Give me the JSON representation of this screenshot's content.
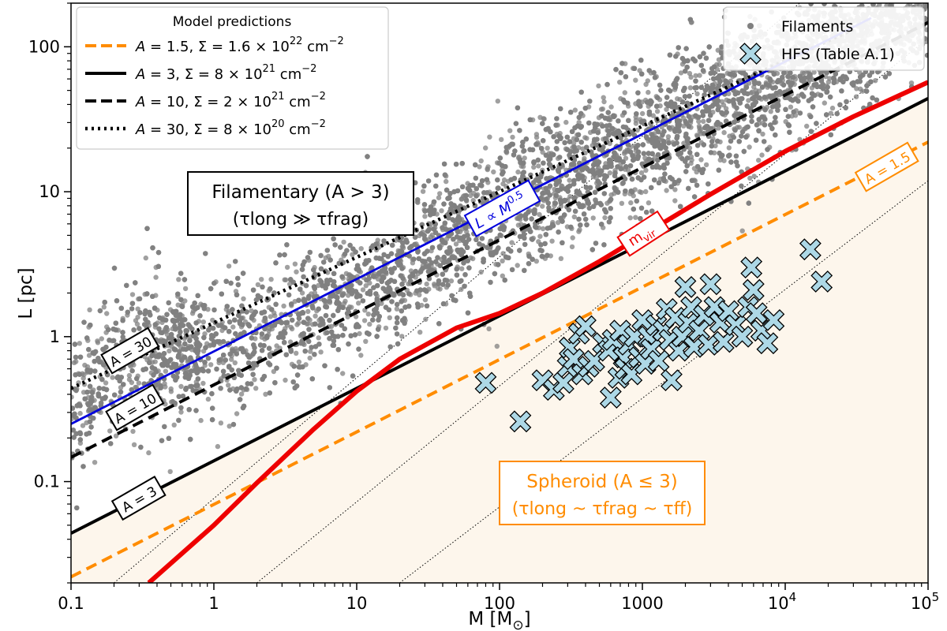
{
  "chart_data": {
    "type": "scatter",
    "title": "",
    "xlabel": "M [M",
    "xlabel_sub": "⊙",
    "xlabel_close": "]",
    "ylabel": "L [pc]",
    "xscale": "log",
    "yscale": "log",
    "xlim": [
      0.1,
      100000
    ],
    "ylim": [
      0.02,
      200
    ],
    "x_ticks": [
      {
        "value": 0.1,
        "label": "0.1"
      },
      {
        "value": 1,
        "label": "1"
      },
      {
        "value": 10,
        "label": "10"
      },
      {
        "value": 100,
        "label": "100"
      },
      {
        "value": 1000,
        "label": "1000"
      },
      {
        "value": 10000,
        "label": "10",
        "exp": "4"
      },
      {
        "value": 100000,
        "label": "10",
        "exp": "5"
      }
    ],
    "y_ticks": [
      {
        "value": 0.1,
        "label": "0.1"
      },
      {
        "value": 1,
        "label": "1"
      },
      {
        "value": 10,
        "label": "10"
      },
      {
        "value": 100,
        "label": "100"
      }
    ],
    "model_lines": [
      {
        "name": "A=1.5",
        "color": "#ff8c00",
        "style": "dashed",
        "x": [
          0.1,
          100000
        ],
        "y": [
          0.022,
          22
        ]
      },
      {
        "name": "A=3",
        "color": "#000000",
        "style": "solid",
        "x": [
          0.1,
          100000
        ],
        "y": [
          0.044,
          44
        ]
      },
      {
        "name": "A=10",
        "color": "#000000",
        "style": "dashed",
        "x": [
          0.1,
          100000
        ],
        "y": [
          0.147,
          147
        ]
      },
      {
        "name": "A=30",
        "color": "#000000",
        "style": "dotted",
        "x": [
          0.1,
          30000
        ],
        "y": [
          0.44,
          132
        ]
      }
    ],
    "relation_lines": [
      {
        "name": "L ∝ M^0.5",
        "color": "#0000dd",
        "x": [
          0.1,
          40000
        ],
        "y": [
          0.25,
          158
        ]
      },
      {
        "name": "m_vir",
        "color": "#ee0000",
        "x": [
          0.35,
          0.6,
          1,
          2,
          5,
          10,
          20,
          50,
          100,
          200,
          500,
          1000,
          3000,
          10000,
          30000,
          100000
        ],
        "y": [
          0.02,
          0.032,
          0.05,
          0.098,
          0.23,
          0.42,
          0.7,
          1.15,
          1.45,
          2.0,
          3.3,
          5.0,
          9.6,
          19.0,
          33.0,
          57.0
        ]
      }
    ],
    "thin_lines": [
      {
        "x": [
          0.2,
          200000
        ],
        "y": [
          0.02,
          2000
        ]
      },
      {
        "x": [
          2,
          200000
        ],
        "y": [
          0.02,
          200
        ]
      },
      {
        "x": [
          20,
          200000
        ],
        "y": [
          0.02,
          20
        ]
      }
    ],
    "filaments_cloud": {
      "label": "Filaments",
      "count": 11000,
      "color": "#808080"
    },
    "hfs_points": [
      [
        80,
        0.48
      ],
      [
        140,
        0.26
      ],
      [
        200,
        0.5
      ],
      [
        240,
        0.43
      ],
      [
        280,
        0.48
      ],
      [
        300,
        0.62
      ],
      [
        310,
        0.84
      ],
      [
        330,
        0.7
      ],
      [
        360,
        1.05
      ],
      [
        380,
        0.55
      ],
      [
        400,
        1.18
      ],
      [
        420,
        0.62
      ],
      [
        460,
        0.68
      ],
      [
        530,
        0.9
      ],
      [
        580,
        0.8
      ],
      [
        600,
        0.38
      ],
      [
        620,
        0.95
      ],
      [
        680,
        0.52
      ],
      [
        700,
        1.1
      ],
      [
        740,
        0.72
      ],
      [
        760,
        0.6
      ],
      [
        800,
        0.88
      ],
      [
        840,
        0.55
      ],
      [
        880,
        1.0
      ],
      [
        950,
        0.72
      ],
      [
        1000,
        1.3
      ],
      [
        1050,
        0.65
      ],
      [
        1100,
        1.0
      ],
      [
        1150,
        0.82
      ],
      [
        1250,
        1.2
      ],
      [
        1300,
        0.68
      ],
      [
        1400,
        1.1
      ],
      [
        1480,
        1.55
      ],
      [
        1550,
        0.95
      ],
      [
        1600,
        0.5
      ],
      [
        1700,
        1.35
      ],
      [
        1800,
        0.8
      ],
      [
        1900,
        1.0
      ],
      [
        2000,
        2.2
      ],
      [
        2100,
        1.25
      ],
      [
        2200,
        1.6
      ],
      [
        2300,
        0.85
      ],
      [
        2500,
        1.1
      ],
      [
        2700,
        1.4
      ],
      [
        2900,
        0.88
      ],
      [
        3000,
        2.3
      ],
      [
        3200,
        1.6
      ],
      [
        3500,
        1.25
      ],
      [
        3700,
        0.92
      ],
      [
        4000,
        1.5
      ],
      [
        4500,
        1.2
      ],
      [
        5000,
        1.0
      ],
      [
        5500,
        1.6
      ],
      [
        5800,
        3.0
      ],
      [
        6000,
        2.1
      ],
      [
        6300,
        1.45
      ],
      [
        6800,
        1.1
      ],
      [
        7500,
        0.9
      ],
      [
        8300,
        1.3
      ],
      [
        15000,
        4.0
      ],
      [
        18000,
        2.4
      ]
    ],
    "legend_models": {
      "title": "Model predictions",
      "items": [
        {
          "style": "dashed",
          "color": "#ff8c00",
          "a": "1.5",
          "sigma": "1.6 × 10",
          "exp": "22",
          "unit": " cm",
          "unit_exp": "−2"
        },
        {
          "style": "solid",
          "color": "#000000",
          "a": "3",
          "sigma": "8 × 10",
          "exp": "21",
          "unit": " cm",
          "unit_exp": "−2"
        },
        {
          "style": "dashed",
          "color": "#000000",
          "a": "10",
          "sigma": "2 × 10",
          "exp": "21",
          "unit": " cm",
          "unit_exp": "−2"
        },
        {
          "style": "dotted",
          "color": "#000000",
          "a": "30",
          "sigma": "8 × 10",
          "exp": "20",
          "unit": " cm",
          "unit_exp": "−2"
        }
      ]
    },
    "legend_data": {
      "items": [
        {
          "marker": "dot",
          "label": "Filaments"
        },
        {
          "marker": "cross",
          "label": "HFS (Table A.1)"
        }
      ]
    },
    "annotations": {
      "filamentary_line1": "Filamentary (A > 3)",
      "filamentary_line2": "(τlong ≫ τfrag)",
      "spheroid_line1": "Spheroid (A ≤ 3)",
      "spheroid_line2": "(τlong ~ τfrag ~ τff)",
      "label_a30": "A = 30",
      "label_a10": "A = 10",
      "label_a3": "A = 3",
      "label_a15": "A = 1.5",
      "label_blue": "L ∝ M",
      "label_blue_exp": "0.5",
      "label_red": "m",
      "label_red_sub": "vir"
    },
    "colors": {
      "spheroid_fill": "#fdf6ec",
      "hfs_fill": "#add8e6",
      "orange": "#ff8c00",
      "blue": "#0000dd",
      "red": "#ee0000",
      "gray": "#808080"
    }
  }
}
